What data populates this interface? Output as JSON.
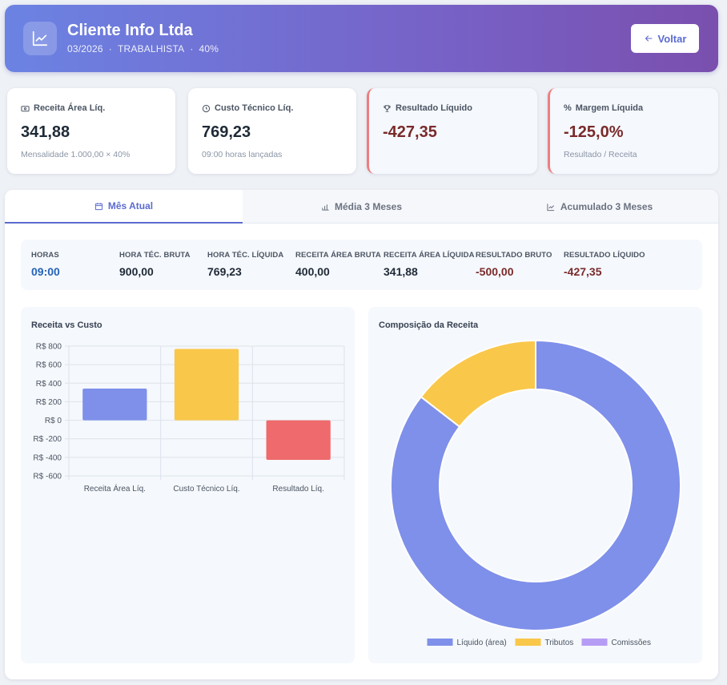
{
  "header": {
    "title": "Cliente Info Ltda",
    "period": "03/2026",
    "type": "TRABALHISTA",
    "percent": "40%",
    "back_label": "Voltar"
  },
  "cards": [
    {
      "icon": "cash-icon",
      "label": "Receita Área Líq.",
      "value": "341,88",
      "sub": "Mensalidade 1.000,00 × 40%"
    },
    {
      "icon": "clock-icon",
      "label": "Custo Técnico Líq.",
      "value": "769,23",
      "sub": "09:00 horas lançadas"
    },
    {
      "icon": "trophy-icon",
      "label": "Resultado Líquido",
      "value": "-427,35",
      "sub": ""
    },
    {
      "icon": "percent-icon",
      "label": "Margem Líquida",
      "value": "-125,0%",
      "sub": "Resultado / Receita"
    }
  ],
  "tabs": [
    {
      "icon": "calendar-icon",
      "label": "Mês Atual",
      "active": true
    },
    {
      "icon": "bar-chart-icon",
      "label": "Média 3 Meses",
      "active": false
    },
    {
      "icon": "line-chart-icon",
      "label": "Acumulado 3 Meses",
      "active": false
    }
  ],
  "stats": [
    {
      "label": "HORAS",
      "value": "09:00"
    },
    {
      "label": "HORA TÉC. BRUTA",
      "value": "900,00"
    },
    {
      "label": "HORA TÉC. LÍQUIDA",
      "value": "769,23"
    },
    {
      "label": "RECEITA ÁREA BRUTA",
      "value": "400,00"
    },
    {
      "label": "RECEITA ÁREA LÍQUIDA",
      "value": "341,88"
    },
    {
      "label": "RESULTADO BRUTO",
      "value": "-500,00"
    },
    {
      "label": "RESULTADO LÍQUIDO",
      "value": "-427,35"
    }
  ],
  "charts": {
    "bar_title": "Receita vs Custo",
    "donut_title": "Composição da Receita"
  },
  "chart_data": [
    {
      "type": "bar",
      "title": "Receita vs Custo",
      "categories": [
        "Receita Área Líq.",
        "Custo Técnico Líq.",
        "Resultado Líq."
      ],
      "values": [
        341.88,
        769.23,
        -427.35
      ],
      "colors": [
        "#7f90ea",
        "#f9c74a",
        "#ef6a6c"
      ],
      "yticks": [
        "R$ 800",
        "R$ 600",
        "R$ 400",
        "R$ 200",
        "R$ 0",
        "R$ -200",
        "R$ -400",
        "R$ -600"
      ],
      "ylim": [
        -600,
        800
      ],
      "grid": true
    },
    {
      "type": "pie",
      "title": "Composição da Receita",
      "labels": [
        "Líquido (área)",
        "Tributos",
        "Comissões"
      ],
      "values": [
        341.88,
        58.12,
        0
      ],
      "colors": [
        "#7f90ea",
        "#f9c74a",
        "#b79cf5"
      ],
      "legend": "bottom"
    }
  ],
  "colors": {
    "accent": "#5b6bd0",
    "negative": "#7a2a2a",
    "header_start": "#6b83e3",
    "header_end": "#7a4fae"
  }
}
